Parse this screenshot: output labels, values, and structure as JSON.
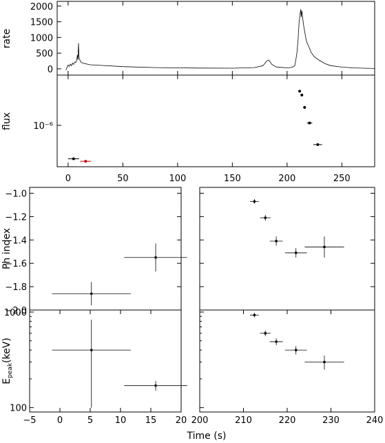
{
  "chart_data": [
    {
      "id": "rate",
      "type": "line",
      "ylabel": "rate",
      "xlim": [
        -10,
        280
      ],
      "ylim": [
        -200,
        2150
      ],
      "xticks": [
        0,
        50,
        100,
        150,
        200,
        250
      ],
      "yticks": [
        0,
        500,
        1000,
        1500,
        2000
      ],
      "ytick_labels": [
        "0",
        "500",
        "1000",
        "1500",
        "2000"
      ],
      "series": [
        {
          "x": [
            -2,
            0,
            1,
            2,
            3,
            4,
            5,
            6,
            7,
            8,
            8.5,
            9,
            9.5,
            10,
            11,
            12,
            15,
            20,
            30,
            50,
            80,
            100,
            120,
            150,
            170,
            178,
            181,
            183,
            184,
            186,
            190,
            200,
            205,
            207,
            208,
            209,
            210,
            211,
            212,
            212.5,
            213,
            213.5,
            214,
            215,
            216,
            217,
            218,
            220,
            222,
            225,
            230,
            235,
            240,
            250,
            260,
            270,
            280
          ],
          "y": [
            -40,
            120,
            80,
            150,
            100,
            180,
            140,
            220,
            200,
            300,
            450,
            280,
            820,
            350,
            260,
            200,
            170,
            130,
            110,
            70,
            40,
            30,
            25,
            20,
            40,
            100,
            230,
            280,
            250,
            140,
            60,
            30,
            50,
            100,
            280,
            500,
            900,
            1500,
            1780,
            1900,
            1650,
            1850,
            1700,
            1400,
            1200,
            1000,
            850,
            700,
            520,
            380,
            260,
            160,
            100,
            55,
            30,
            20,
            10
          ]
        }
      ]
    },
    {
      "id": "flux",
      "type": "scatter",
      "ylabel": "flux",
      "scale": "log",
      "xlim": [
        -10,
        280
      ],
      "xticks": [
        0,
        50,
        100,
        150,
        200,
        250
      ],
      "xtick_labels": [
        "0",
        "50",
        "100",
        "150",
        "200",
        "250"
      ],
      "ylim": [
        1.8e-07,
        8e-06
      ],
      "yticks": [
        1e-06
      ],
      "ytick_labels": [
        "10⁻⁶"
      ],
      "points": [
        {
          "x": 5,
          "xerr": 5,
          "y": 2.5e-07,
          "color": "#000000"
        },
        {
          "x": 16,
          "xerr": 5,
          "y": 2.25e-07,
          "color": "#cc0000"
        },
        {
          "x": 211.5,
          "xerr": 0.7,
          "y": 4.1e-06,
          "color": "#000000"
        },
        {
          "x": 213.5,
          "xerr": 0.7,
          "y": 3.5e-06,
          "color": "#000000"
        },
        {
          "x": 216,
          "xerr": 1,
          "y": 2.1e-06,
          "color": "#000000"
        },
        {
          "x": 220.5,
          "xerr": 2.5,
          "y": 1.1e-06,
          "color": "#000000"
        },
        {
          "x": 228,
          "xerr": 4,
          "y": 4.5e-07,
          "color": "#000000"
        }
      ]
    },
    {
      "id": "phindex-left",
      "type": "scatter",
      "ylabel": "Ph index",
      "xlim": [
        -5,
        20
      ],
      "ylim": [
        -2.0,
        -0.95
      ],
      "yticks": [
        -2.0,
        -1.8,
        -1.6,
        -1.4,
        -1.2,
        -1.0
      ],
      "ytick_labels": [
        "−2.0",
        "−1.8",
        "−1.6",
        "−1.4",
        "−1.2",
        "−1.0"
      ],
      "points": [
        {
          "x": 5.2,
          "xerr": 6.5,
          "y": -1.86,
          "yerr": 0.1
        },
        {
          "x": 15.8,
          "xerr": 5.2,
          "y": -1.55,
          "yerr": 0.12
        }
      ]
    },
    {
      "id": "phindex-right",
      "type": "scatter",
      "xlim": [
        200,
        240
      ],
      "ylim": [
        -2.0,
        -0.95
      ],
      "points": [
        {
          "x": 212.5,
          "xerr": 1,
          "y": -1.07,
          "yerr": 0.02
        },
        {
          "x": 215,
          "xerr": 1.2,
          "y": -1.21,
          "yerr": 0.025
        },
        {
          "x": 217.5,
          "xerr": 1.5,
          "y": -1.41,
          "yerr": 0.04
        },
        {
          "x": 222,
          "xerr": 2.5,
          "y": -1.51,
          "yerr": 0.04
        },
        {
          "x": 228.5,
          "xerr": 4.5,
          "y": -1.46,
          "yerr": 0.09
        }
      ]
    },
    {
      "id": "epeak-left",
      "type": "scatter",
      "ylabel": "E_peak (keV)",
      "ylabel_main": "E",
      "ylabel_sub": "peak",
      "ylabel_unit": "(keV)",
      "scale": "log",
      "xlim": [
        -5,
        20
      ],
      "ylim": [
        90,
        1050
      ],
      "yticks": [
        100,
        1000
      ],
      "ytick_labels": [
        "100",
        "1000"
      ],
      "xticks": [
        -5,
        0,
        5,
        10,
        15,
        20
      ],
      "xtick_labels": [
        "−5",
        "0",
        "5",
        "10",
        "15",
        "20"
      ],
      "points": [
        {
          "x": 5.2,
          "xerr": 6.5,
          "y": 400,
          "ylo": 100,
          "yhi": 830
        },
        {
          "x": 15.8,
          "xerr": 5.2,
          "y": 170,
          "ylo": 150,
          "yhi": 190
        }
      ]
    },
    {
      "id": "epeak-right",
      "type": "scatter",
      "scale": "log",
      "xlim": [
        200,
        240
      ],
      "ylim": [
        90,
        1050
      ],
      "xticks": [
        200,
        210,
        220,
        230,
        240
      ],
      "xtick_labels": [
        "200",
        "210",
        "220",
        "230",
        "240"
      ],
      "points": [
        {
          "x": 212.5,
          "xerr": 1,
          "y": 930,
          "ylo": 880,
          "yhi": 980
        },
        {
          "x": 215,
          "xerr": 1.2,
          "y": 600,
          "ylo": 560,
          "yhi": 640
        },
        {
          "x": 217.5,
          "xerr": 1.5,
          "y": 490,
          "ylo": 450,
          "yhi": 530
        },
        {
          "x": 222,
          "xerr": 2.5,
          "y": 400,
          "ylo": 360,
          "yhi": 440
        },
        {
          "x": 228.5,
          "xerr": 4.5,
          "y": 300,
          "ylo": 250,
          "yhi": 350
        }
      ]
    }
  ],
  "xlabel": "Time (s)"
}
